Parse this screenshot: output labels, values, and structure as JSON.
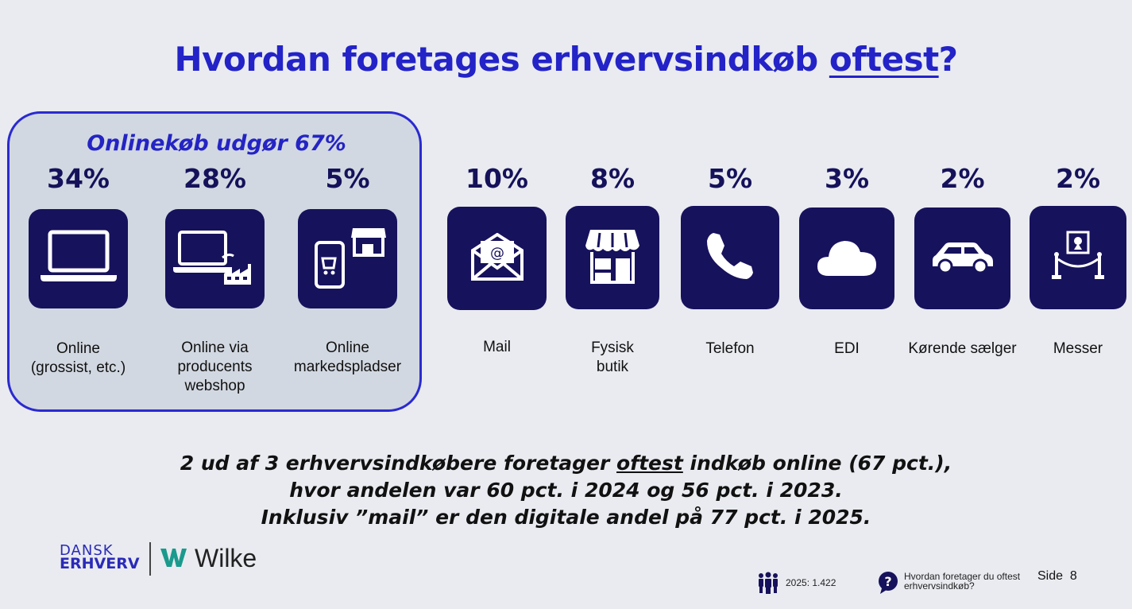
{
  "title": {
    "before": "Hvordan foretages erhvervsindkøb ",
    "underlined": "oftest",
    "after": "?"
  },
  "online_group": {
    "heading": "Onlinekøb udgør 67%"
  },
  "categories": [
    {
      "pct": "34%",
      "label": "Online\n(grossist, etc.)",
      "icon": "laptop-icon"
    },
    {
      "pct": "28%",
      "label": "Online via\nproducents\nwebshop",
      "icon": "laptop-factory-icon"
    },
    {
      "pct": "5%",
      "label": "Online\nmarkedspladser",
      "icon": "phone-shop-icon"
    },
    {
      "pct": "10%",
      "label": "Mail",
      "icon": "mail-icon"
    },
    {
      "pct": "8%",
      "label": "Fysisk\nbutik",
      "icon": "shop-icon"
    },
    {
      "pct": "5%",
      "label": "Telefon",
      "icon": "phone-icon"
    },
    {
      "pct": "3%",
      "label": "EDI",
      "icon": "cloud-icon"
    },
    {
      "pct": "2%",
      "label": "Kørende sælger",
      "icon": "car-icon"
    },
    {
      "pct": "2%",
      "label": "Messer",
      "icon": "exhibition-icon"
    }
  ],
  "summary": {
    "line1_before": "2 ud af 3 erhvervsindkøbere foretager ",
    "line1_underlined": "oftest",
    "line1_after": " indkøb online (67 pct.),",
    "line2": "hvor andelen var 60 pct. i 2024 og 56 pct. i 2023.",
    "line3": "Inklusiv ”mail” er den digitale andel på 77 pct. i 2025."
  },
  "footer": {
    "logo_line1": "DANSK",
    "logo_line2": "ERHVERV",
    "logo_brand": "Wilke",
    "sample": "2025: 1.422",
    "question_line1": "Hvordan foretager du oftest",
    "question_line2": "erhvervsindkøb?",
    "page_label": "Side",
    "page_number": "8"
  },
  "colors": {
    "accent": "#2323c8",
    "tile": "#17125c",
    "box": "#d2d8e1",
    "background": "#e9ebf0",
    "logo_w": "#1a9a8c"
  }
}
